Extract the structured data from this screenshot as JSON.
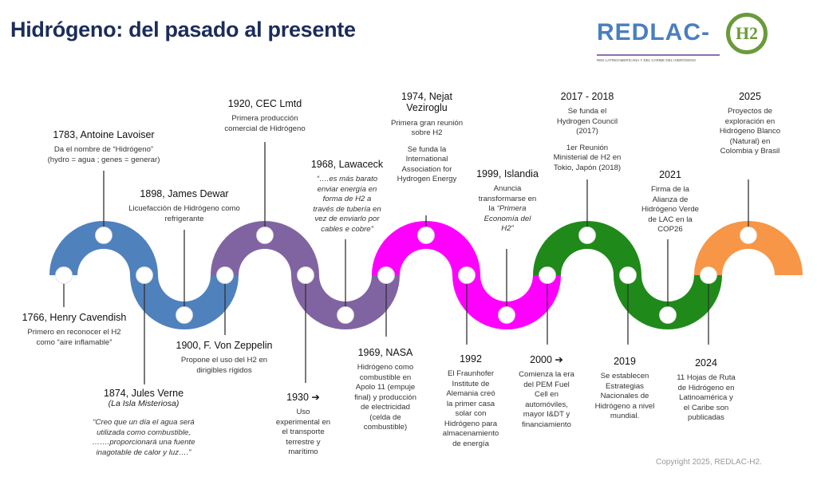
{
  "title": "Hidrógeno: del pasado al presente",
  "logo": {
    "name": "REDLAC-",
    "mark": "H2",
    "subtitle": "RED LATINOAMERICANA Y DEL CARIBE DEL HIDRÓGENO"
  },
  "colors": {
    "blue": "#4f81bd",
    "purple": "#8064a2",
    "magenta": "#ff00ff",
    "green": "#1f8a1a",
    "orange": "#f79646",
    "title": "#1c2d5a"
  },
  "copyright": "Copyright 2025, REDLAC-H2.",
  "events": [
    {
      "title": "1766, Henry Cavendish",
      "desc": "Primero en reconocer el H2\ncomo “aire inflamable”"
    },
    {
      "title": "1783, Antoine Lavoiser",
      "desc": "Da el nombre de “Hidrógeno”\n(hydro = agua ; genes = generar)"
    },
    {
      "title": "1874, Jules Verne",
      "subtitle": "(La Isla Misteriosa)",
      "desc_italic": "“Creo que un día el agua será\nutilizada como combustible,\n…….proporcionará una fuente\ninagotable de calor y luz….”"
    },
    {
      "title": "1898, James Dewar",
      "desc": "Licuefacción de Hidrógeno como\nrefrigerante"
    },
    {
      "title": "1900, F. Von Zeppelin",
      "desc": "Propone el uso del H2 en\ndirigibles rígidos"
    },
    {
      "title": "1920, CEC Lmtd",
      "desc": "Primera producción\ncomercial de Hidrógeno"
    },
    {
      "title": "1930 ➔",
      "desc": "Uso\nexperimental en\nel transporte\nterrestre y\nmarítimo"
    },
    {
      "title": "1968, Lawaceck",
      "desc_italic": "“….es más barato\nenviar energía en\nforma de H2 a\ntravés de tubería en\nvez de enviarlo por\ncables e cobre”"
    },
    {
      "title": "1969, NASA",
      "desc": "Hidrógeno como\ncombustible en\nApolo 11 (empuje\nfinal) y producción\nde electricidad\n(celda de\ncombustible)"
    },
    {
      "title": "1974, Nejat\nVeziroglu",
      "desc": "Primera gran reunión\nsobre  H2",
      "desc2": "Se funda la\nInternational\nAssociation for\nHydrogen Energy"
    },
    {
      "title": "1992",
      "desc": "El Fraunhofer\nInstitute de\nAlemania creó\nla primer casa\nsolar con\nHidrógeno para\nalmacenamiento\nde energía"
    },
    {
      "title": "1999, Islandia",
      "desc": "Anuncia\ntransformarse en\nla ",
      "desc_italic_inline": "“Primera\nEconomía del\nH2”"
    },
    {
      "title": "2000 ➔",
      "desc": "Comienza la era\ndel PEM Fuel\nCell en\nautomóviles,\nmayor I&DT y\nfinanciamiento"
    },
    {
      "title": "2017 - 2018",
      "desc": "Se funda el\nHydrogen Council\n(2017)",
      "desc2": "1er Reunión\nMinisterial de H2 en\nTokio, Japón (2018)"
    },
    {
      "title": "2019",
      "desc": "Se establecen\nEstrategias\nNacionales de\nHidrógeno a nivel\nmundial."
    },
    {
      "title": "2021",
      "desc": "Firma de la\nAlianza de\nHidrógeno Verde\nde LAC en la\nCOP26"
    },
    {
      "title": "2024",
      "desc": "11 Hojas de Ruta\nde Hidrógeno en\nLatinoamérica y\nel Caribe son\npublicadas"
    },
    {
      "title": "2025",
      "desc": "Proyectos de\nexploración en\nHidrógeno Blanco\n(Natural) en\nColombia y Brasil"
    }
  ]
}
